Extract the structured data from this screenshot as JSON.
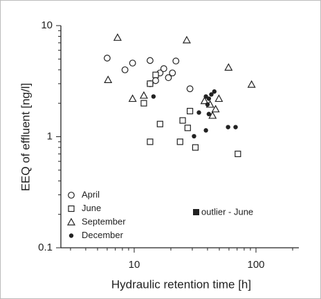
{
  "chart_data": {
    "type": "scatter",
    "x_label": "Hydraulic retention time [h]",
    "y_label": "EEQ of effluent [ng/l]",
    "xlim": [
      2.5,
      225
    ],
    "ylim": [
      0.1,
      10
    ],
    "xticks": [
      10,
      100
    ],
    "yticks": [
      0.1,
      1,
      10
    ],
    "log_x": true,
    "log_y": true,
    "legend": "lower left",
    "annotation": "outlier - June",
    "series": [
      {
        "name": "April",
        "color": "#222222",
        "marker": "open-circle",
        "x": [
          6.0,
          8.4,
          9.7,
          13.5,
          22,
          13.5,
          15,
          16.3,
          17.5,
          19.1,
          20.6,
          28.7
        ],
        "values": [
          5.1,
          4.0,
          4.6,
          4.85,
          4.8,
          3.0,
          3.2,
          3.75,
          4.1,
          3.4,
          3.75,
          2.7
        ]
      },
      {
        "name": "June",
        "color": "#222222",
        "marker": "open-square",
        "x": [
          13.5,
          15,
          12,
          28.7,
          25,
          16.3,
          27.5,
          13.5,
          23.8,
          31.8,
          71
        ],
        "values": [
          3.0,
          3.6,
          2.0,
          1.7,
          1.4,
          1.3,
          1.2,
          0.9,
          0.9,
          0.8,
          0.7
        ]
      },
      {
        "name": "September",
        "color": "#222222",
        "marker": "open-triangle",
        "x": [
          6.1,
          7.3,
          9.7,
          12,
          27,
          59.5,
          92,
          37.8,
          42,
          44,
          46.6,
          49.6
        ],
        "values": [
          3.25,
          7.8,
          2.2,
          2.35,
          7.4,
          4.2,
          2.95,
          2.1,
          1.95,
          1.55,
          1.77,
          2.2
        ]
      },
      {
        "name": "December",
        "color": "#222222",
        "marker": "filled-circle",
        "x": [
          14.4,
          38.8,
          41,
          43,
          40,
          45.5,
          34,
          41,
          38.8,
          31,
          59,
          68
        ],
        "values": [
          2.3,
          2.3,
          2.2,
          2.4,
          1.95,
          2.55,
          1.65,
          1.6,
          1.14,
          1.01,
          1.22,
          1.22
        ]
      }
    ]
  }
}
